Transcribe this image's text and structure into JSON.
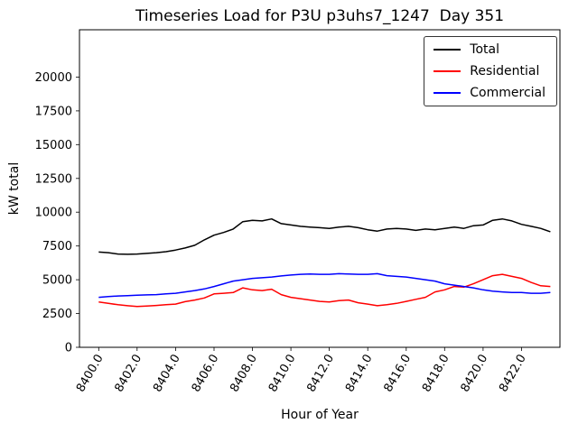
{
  "chart_data": {
    "type": "line",
    "title": "Timeseries Load for P3U p3uhs7_1247  Day 351",
    "xlabel": "Hour of Year",
    "ylabel": "kW total",
    "xlim": [
      8399,
      8424
    ],
    "ylim": [
      0,
      23500
    ],
    "grid": false,
    "legend_position": "upper right",
    "x_ticks": [
      8400,
      8402,
      8404,
      8406,
      8408,
      8410,
      8412,
      8414,
      8416,
      8418,
      8420,
      8422
    ],
    "x_tick_labels": [
      "8400.0",
      "8402.0",
      "8404.0",
      "8406.0",
      "8408.0",
      "8410.0",
      "8412.0",
      "8414.0",
      "8416.0",
      "8418.0",
      "8420.0",
      "8422.0"
    ],
    "y_ticks": [
      0,
      2500,
      5000,
      7500,
      10000,
      12500,
      15000,
      17500,
      20000
    ],
    "y_tick_labels": [
      "0",
      "2500",
      "5000",
      "7500",
      "10000",
      "12500",
      "15000",
      "17500",
      "20000"
    ],
    "x": [
      8400,
      8400.5,
      8401,
      8401.5,
      8402,
      8402.5,
      8403,
      8403.5,
      8404,
      8404.5,
      8405,
      8405.5,
      8406,
      8406.5,
      8407,
      8407.5,
      8408,
      8408.5,
      8409,
      8409.5,
      8410,
      8410.5,
      8411,
      8411.5,
      8412,
      8412.5,
      8413,
      8413.5,
      8414,
      8414.5,
      8415,
      8415.5,
      8416,
      8416.5,
      8417,
      8417.5,
      8418,
      8418.5,
      8419,
      8419.5,
      8420,
      8420.5,
      8421,
      8421.5,
      8422,
      8422.5,
      8423,
      8423.5
    ],
    "series": [
      {
        "name": "Total",
        "color": "#000000",
        "values": [
          7050,
          7000,
          6900,
          6880,
          6900,
          6950,
          7000,
          7080,
          7200,
          7350,
          7550,
          7950,
          8300,
          8500,
          8750,
          9300,
          9400,
          9350,
          9500,
          9150,
          9050,
          8950,
          8900,
          8850,
          8800,
          8900,
          8950,
          8850,
          8700,
          8600,
          8750,
          8800,
          8750,
          8650,
          8750,
          8700,
          8800,
          8900,
          8800,
          9000,
          9050,
          9400,
          9500,
          9350,
          9100,
          8950,
          8800,
          8550
        ]
      },
      {
        "name": "Residential",
        "color": "#ff0000",
        "values": [
          3350,
          3250,
          3150,
          3080,
          3020,
          3050,
          3100,
          3150,
          3200,
          3380,
          3500,
          3650,
          3950,
          4000,
          4050,
          4400,
          4250,
          4200,
          4300,
          3900,
          3700,
          3600,
          3500,
          3400,
          3350,
          3450,
          3500,
          3300,
          3200,
          3080,
          3150,
          3250,
          3400,
          3550,
          3700,
          4100,
          4250,
          4500,
          4450,
          4700,
          5000,
          5300,
          5400,
          5250,
          5100,
          4800,
          4550,
          4500
        ]
      },
      {
        "name": "Commercial",
        "color": "#0000ff",
        "values": [
          3700,
          3750,
          3800,
          3820,
          3850,
          3880,
          3900,
          3950,
          4000,
          4100,
          4200,
          4320,
          4500,
          4700,
          4900,
          5000,
          5100,
          5150,
          5200,
          5280,
          5350,
          5400,
          5420,
          5400,
          5400,
          5450,
          5420,
          5400,
          5400,
          5450,
          5300,
          5250,
          5200,
          5100,
          5000,
          4900,
          4700,
          4600,
          4500,
          4400,
          4250,
          4150,
          4100,
          4050,
          4050,
          4000,
          4000,
          4050
        ]
      }
    ]
  }
}
